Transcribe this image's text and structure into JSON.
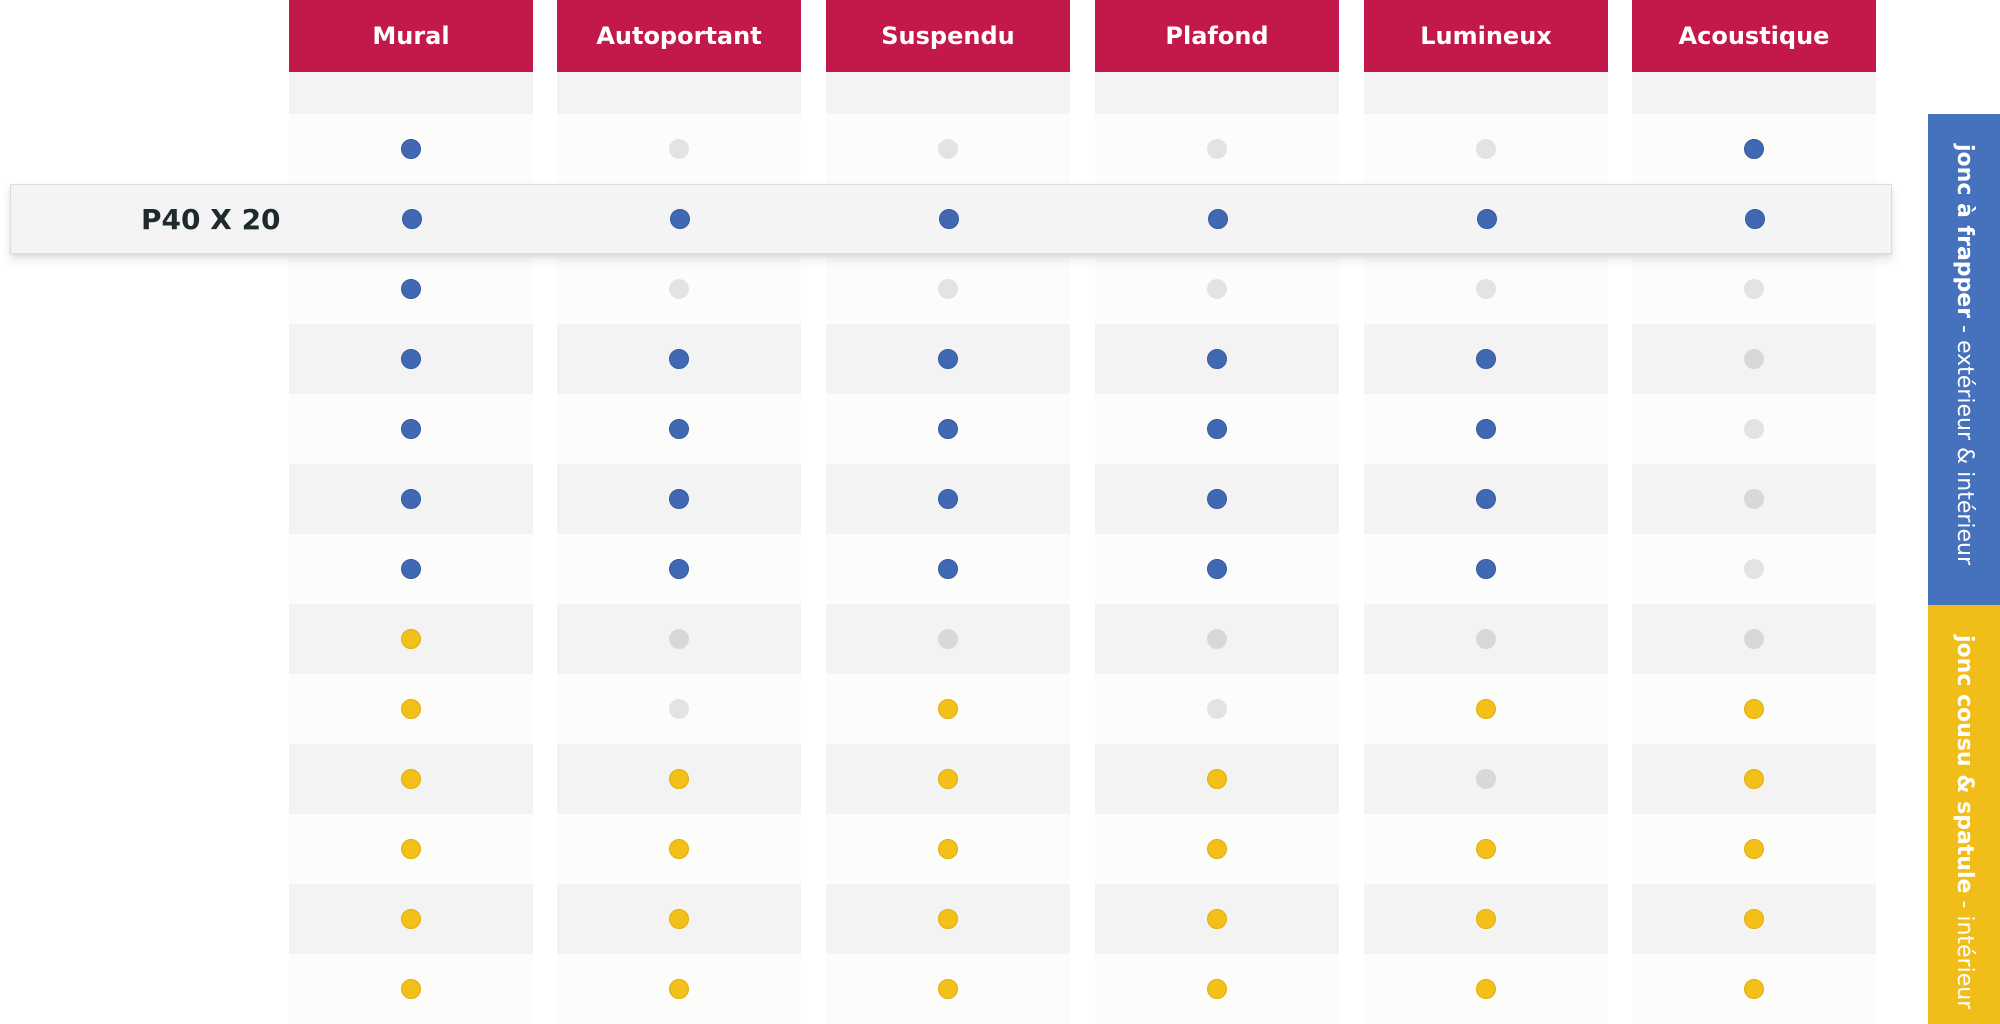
{
  "columns": [
    "Mural",
    "Autoportant",
    "Suspendu",
    "Plafond",
    "Lumineux",
    "Acoustique"
  ],
  "highlight_row": {
    "label": "P40 X 20",
    "values": [
      "blue",
      "blue",
      "blue",
      "blue",
      "blue",
      "blue"
    ]
  },
  "rows": [
    [
      "blue",
      "off",
      "off",
      "off",
      "off",
      "blue"
    ],
    [
      "__highlight__"
    ],
    [
      "blue",
      "off",
      "off",
      "off",
      "off",
      "off"
    ],
    [
      "blue",
      "blue",
      "blue",
      "blue",
      "blue",
      "off2"
    ],
    [
      "blue",
      "blue",
      "blue",
      "blue",
      "blue",
      "off"
    ],
    [
      "blue",
      "blue",
      "blue",
      "blue",
      "blue",
      "off2"
    ],
    [
      "blue",
      "blue",
      "blue",
      "blue",
      "blue",
      "off"
    ],
    [
      "yellow",
      "off2",
      "off2",
      "off2",
      "off2",
      "off2"
    ],
    [
      "yellow",
      "off",
      "yellow",
      "off",
      "yellow",
      "yellow"
    ],
    [
      "yellow",
      "yellow",
      "yellow",
      "yellow",
      "off2",
      "yellow"
    ],
    [
      "yellow",
      "yellow",
      "yellow",
      "yellow",
      "yellow",
      "yellow"
    ],
    [
      "yellow",
      "yellow",
      "yellow",
      "yellow",
      "yellow",
      "yellow"
    ],
    [
      "yellow",
      "yellow",
      "yellow",
      "yellow",
      "yellow",
      "yellow"
    ]
  ],
  "side_bands": {
    "blue": {
      "strong": "jonc à frapper",
      "thin": " - extérieur & intérieur"
    },
    "yellow": {
      "strong": "jonc cousu & spatule",
      "thin": " - intérieur"
    }
  },
  "colors": {
    "header": "#c2184a",
    "blue_dot": "#4169b3",
    "yellow_dot": "#f3bf19",
    "off_dot": "#e3e3e3",
    "band_blue": "#4672bd",
    "band_yellow": "#f1bd18"
  }
}
